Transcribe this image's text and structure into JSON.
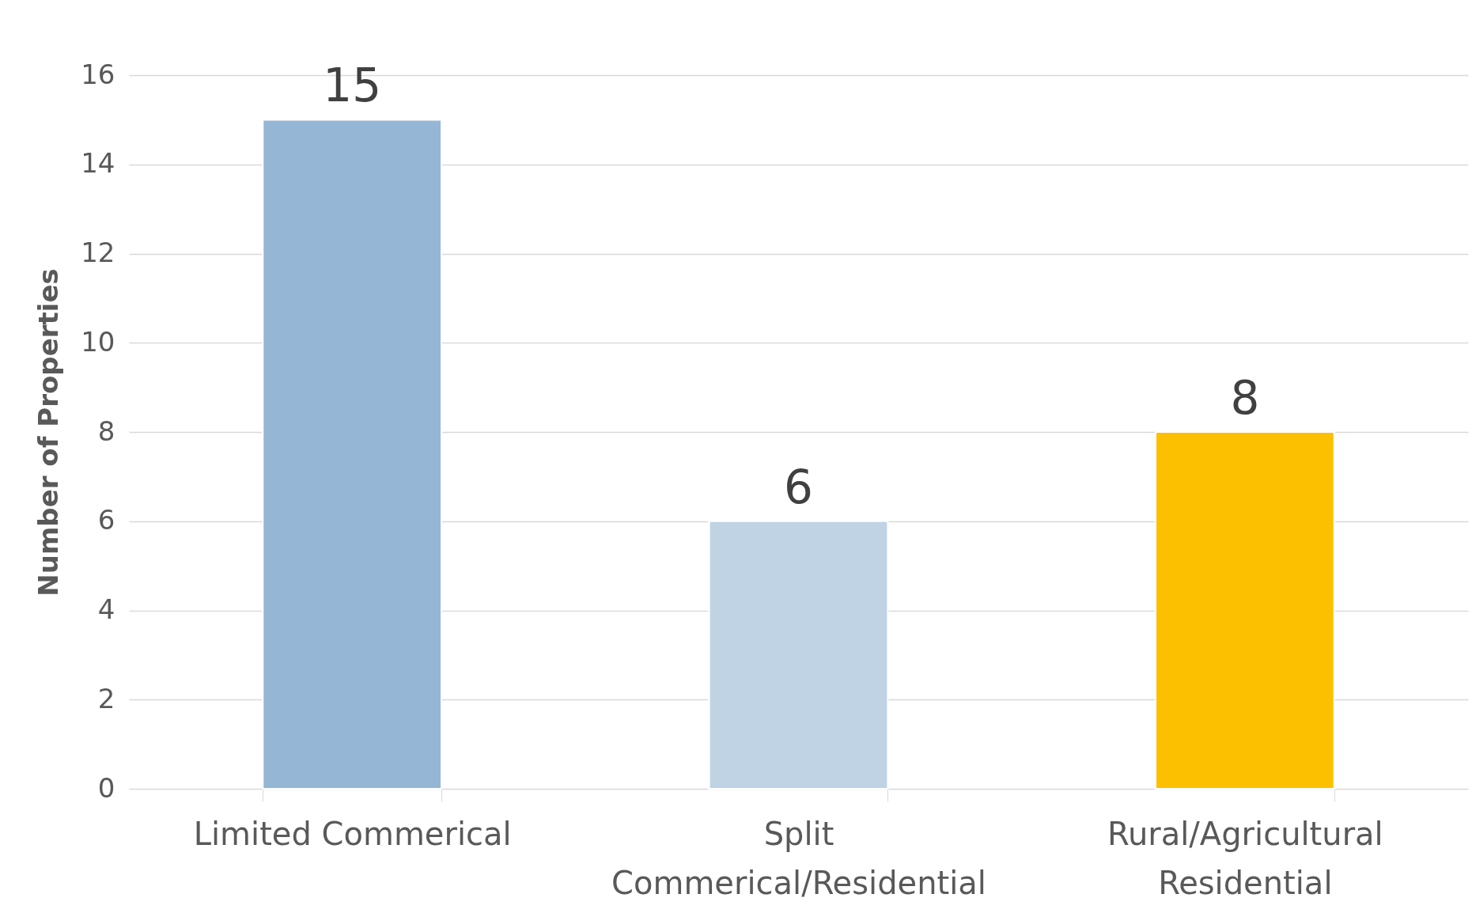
{
  "chart_data": {
    "type": "bar",
    "ylabel": "Number of Properties",
    "categories": [
      "Limited Commerical",
      "Split Commerical/Residential",
      "Rural/Agricultural Residential"
    ],
    "values": [
      15,
      6,
      8
    ],
    "colors": [
      "#95b6d4",
      "#bfd3e5",
      "#fdc000"
    ],
    "ylim": [
      0,
      16
    ],
    "yticks": [
      0,
      2,
      4,
      6,
      8,
      10,
      12,
      14,
      16
    ],
    "grid": "y",
    "data_labels": true
  }
}
